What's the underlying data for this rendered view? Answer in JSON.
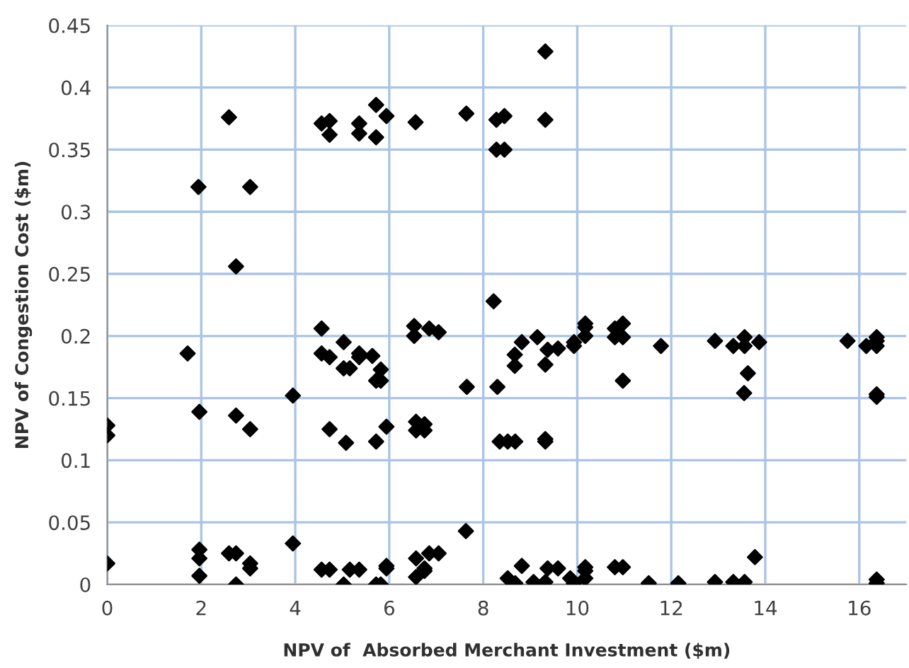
{
  "chart_data": {
    "type": "scatter",
    "xlabel": "NPV of  Absorbed Merchant Investment ($m)",
    "ylabel": "NPV of Congestion Cost ($m)",
    "xlim": [
      0,
      17
    ],
    "xticks": [
      0,
      2,
      4,
      6,
      8,
      10,
      12,
      14,
      16
    ],
    "ylim": [
      0,
      0.45
    ],
    "yticks": [
      0,
      0.05,
      0.1,
      0.15,
      0.2,
      0.25,
      0.3,
      0.35,
      0.4,
      0.45
    ],
    "grid": true,
    "marker": "diamond",
    "series": [
      {
        "color": "#000000",
        "x": [
          2.59,
          1.94,
          3.04,
          2.74,
          4.56,
          4.73,
          4.73,
          5.36,
          5.36,
          5.72,
          5.72,
          5.94,
          6.56,
          7.64,
          9.32,
          8.28,
          8.45,
          9.32,
          8.28,
          8.45,
          8.22,
          7.65,
          8.82,
          8.67,
          8.67,
          8.3,
          9.15,
          9.37,
          9.32,
          9.59,
          9.93,
          9.93,
          10.17,
          10.17,
          10.17,
          10.8,
          10.8,
          10.97,
          10.97,
          10.97,
          11.78,
          12.93,
          13.32,
          13.56,
          13.56,
          13.87,
          13.63,
          13.55,
          15.75,
          16.15,
          16.37,
          16.37,
          16.37,
          16.37,
          16.37,
          8.35,
          8.52,
          8.68,
          9.32,
          9.32,
          7.63,
          13.78,
          8.82,
          8.52,
          8.68,
          9.07,
          9.32,
          9.37,
          9.59,
          9.85,
          9.93,
          10.17,
          10.17,
          10.17,
          10.8,
          10.97,
          11.52,
          12.15,
          12.93,
          13.32,
          13.56,
          16.37,
          16.37,
          0,
          0,
          0,
          1.71,
          1.96,
          1.96,
          1.96,
          1.96,
          2.74,
          3.04,
          2.59,
          2.74,
          2.74,
          3.04,
          3.04,
          3.95,
          3.95,
          4.56,
          4.56,
          4.73,
          4.73,
          4.56,
          4.73,
          5.03,
          5.03,
          5.16,
          5.08,
          5.03,
          5.16,
          5.36,
          5.36,
          5.36,
          5.64,
          5.82,
          5.72,
          5.82,
          5.72,
          5.94,
          5.72,
          5.82,
          5.94,
          5.94,
          6.53,
          6.53,
          6.57,
          6.57,
          6.75,
          6.75,
          6.57,
          6.57,
          6.75,
          6.75,
          6.85,
          7.05,
          6.85,
          7.05
        ],
        "values": [
          0.376,
          0.32,
          0.32,
          0.256,
          0.371,
          0.373,
          0.362,
          0.371,
          0.363,
          0.386,
          0.36,
          0.377,
          0.372,
          0.379,
          0.429,
          0.374,
          0.377,
          0.374,
          0.35,
          0.35,
          0.228,
          0.159,
          0.195,
          0.185,
          0.176,
          0.159,
          0.199,
          0.189,
          0.177,
          0.19,
          0.195,
          0.192,
          0.21,
          0.207,
          0.2,
          0.206,
          0.199,
          0.21,
          0.199,
          0.164,
          0.192,
          0.196,
          0.192,
          0.199,
          0.192,
          0.195,
          0.17,
          0.154,
          0.196,
          0.192,
          0.199,
          0.196,
          0.192,
          0.153,
          0.151,
          0.115,
          0.115,
          0.115,
          0.117,
          0.115,
          0.043,
          0.022,
          0.015,
          0.005,
          0.001,
          0.002,
          0.002,
          0.013,
          0.013,
          0.005,
          0.001,
          0.014,
          0.011,
          0.005,
          0.014,
          0.014,
          0.001,
          0.001,
          0.002,
          0.002,
          0.002,
          0.004,
          0.001,
          0.128,
          0.12,
          0.017,
          0.186,
          0.139,
          0.028,
          0.021,
          0.007,
          0.136,
          0.125,
          0.025,
          0.025,
          0,
          0.017,
          0.013,
          0.152,
          0.033,
          0.206,
          0.186,
          0.183,
          0.125,
          0.012,
          0.012,
          0.195,
          0.174,
          0.174,
          0.114,
          0,
          0.012,
          0.012,
          0.186,
          0.183,
          0.184,
          0.173,
          0.164,
          0.164,
          0.115,
          0.127,
          0,
          0,
          0.015,
          0.013,
          0.208,
          0.2,
          0.131,
          0.124,
          0.129,
          0.124,
          0.021,
          0.006,
          0.013,
          0.011,
          0.206,
          0.203,
          0.025,
          0.025
        ]
      }
    ]
  }
}
